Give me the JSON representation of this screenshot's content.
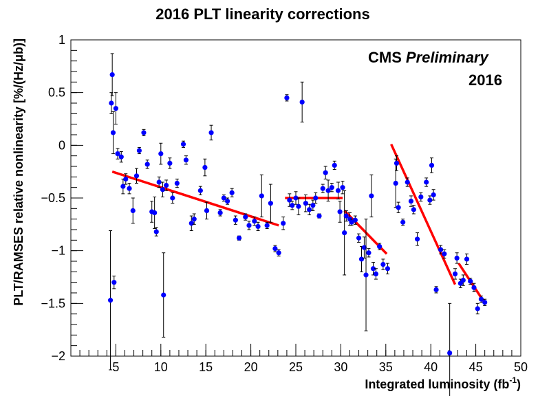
{
  "chart_data": {
    "type": "scatter",
    "title": "2016 PLT linearity corrections",
    "xlabel": "Integrated luminosity (fb",
    "xlabel_sup": "-1",
    "xlabel_close": ")",
    "ylabel": "PLT/RAMSES relative nonlinearity [%/(Hz/μb)]",
    "xlim": [
      0,
      50
    ],
    "ylim": [
      -2,
      1
    ],
    "x_ticks": [
      5,
      10,
      15,
      20,
      25,
      30,
      35,
      40,
      45,
      50
    ],
    "y_ticks": [
      -2,
      -1.5,
      -1,
      -0.5,
      0,
      0.5,
      1
    ],
    "y_tick_labels": [
      "−2",
      "−1.5",
      "−1",
      "−0.5",
      "0",
      "0.5",
      "1"
    ],
    "x_minor_step": 1,
    "y_minor_step": 0.1,
    "grid": false,
    "legend": "none",
    "annotations": {
      "experiment": "CMS",
      "status": "Preliminary",
      "year": "2016"
    },
    "colors": {
      "points": "#0000ff",
      "fits": "#ff0000",
      "axes": "#000000"
    },
    "series": [
      {
        "kind": "points_with_errors",
        "points": [
          {
            "x": 4.4,
            "y": -1.47,
            "err": 0.66
          },
          {
            "x": 4.5,
            "y": 0.4,
            "err": 0.1
          },
          {
            "x": 4.6,
            "y": 0.67,
            "err": 0.2
          },
          {
            "x": 4.7,
            "y": 0.12,
            "err": 0.2
          },
          {
            "x": 4.8,
            "y": -1.3,
            "err": 0.06
          },
          {
            "x": 5.0,
            "y": 0.35,
            "err": 0.15
          },
          {
            "x": 5.2,
            "y": -0.08,
            "err": 0.05
          },
          {
            "x": 5.6,
            "y": -0.11,
            "err": 0.05
          },
          {
            "x": 5.8,
            "y": -0.39,
            "err": 0.07
          },
          {
            "x": 6.1,
            "y": -0.32,
            "err": 0.05
          },
          {
            "x": 6.5,
            "y": -0.41,
            "err": 0.05
          },
          {
            "x": 6.9,
            "y": -0.62,
            "err": 0.12
          },
          {
            "x": 7.3,
            "y": -0.29,
            "err": 0.07
          },
          {
            "x": 7.6,
            "y": -0.05,
            "err": 0.03
          },
          {
            "x": 8.1,
            "y": 0.12,
            "err": 0.03
          },
          {
            "x": 8.5,
            "y": -0.18,
            "err": 0.04
          },
          {
            "x": 9.0,
            "y": -0.63,
            "err": 0.1
          },
          {
            "x": 9.3,
            "y": -0.64,
            "err": 0.15
          },
          {
            "x": 9.5,
            "y": -0.82,
            "err": 0.04
          },
          {
            "x": 9.8,
            "y": -0.35,
            "err": 0.05
          },
          {
            "x": 10.0,
            "y": -0.08,
            "err": 0.1
          },
          {
            "x": 10.2,
            "y": -0.42,
            "err": 0.07
          },
          {
            "x": 10.3,
            "y": -1.42,
            "err": 0.4
          },
          {
            "x": 10.6,
            "y": -0.38,
            "err": 0.05
          },
          {
            "x": 11.0,
            "y": -0.17,
            "err": 0.05
          },
          {
            "x": 11.3,
            "y": -0.5,
            "err": 0.05
          },
          {
            "x": 11.8,
            "y": -0.36,
            "err": 0.04
          },
          {
            "x": 12.5,
            "y": 0.01,
            "err": 0.03
          },
          {
            "x": 12.8,
            "y": -0.14,
            "err": 0.04
          },
          {
            "x": 13.4,
            "y": -0.74,
            "err": 0.07
          },
          {
            "x": 13.7,
            "y": -0.7,
            "err": 0.05
          },
          {
            "x": 14.4,
            "y": -0.43,
            "err": 0.04
          },
          {
            "x": 14.9,
            "y": -0.21,
            "err": 0.08
          },
          {
            "x": 15.1,
            "y": -0.62,
            "err": 0.08
          },
          {
            "x": 15.6,
            "y": 0.12,
            "err": 0.07
          },
          {
            "x": 16.6,
            "y": -0.64,
            "err": 0.03
          },
          {
            "x": 17.0,
            "y": -0.5,
            "err": 0.03
          },
          {
            "x": 17.4,
            "y": -0.53,
            "err": 0.03
          },
          {
            "x": 17.9,
            "y": -0.45,
            "err": 0.04
          },
          {
            "x": 18.3,
            "y": -0.71,
            "err": 0.04
          },
          {
            "x": 18.7,
            "y": -0.88,
            "err": 0.02
          },
          {
            "x": 19.4,
            "y": -0.68,
            "err": 0.03
          },
          {
            "x": 19.8,
            "y": -0.76,
            "err": 0.04
          },
          {
            "x": 20.4,
            "y": -0.72,
            "err": 0.04
          },
          {
            "x": 20.8,
            "y": -0.77,
            "err": 0.04
          },
          {
            "x": 21.2,
            "y": -0.48,
            "err": 0.2
          },
          {
            "x": 21.8,
            "y": -0.76,
            "err": 0.03
          },
          {
            "x": 22.2,
            "y": -0.55,
            "err": 0.18
          },
          {
            "x": 22.7,
            "y": -0.98,
            "err": 0.03
          },
          {
            "x": 23.1,
            "y": -1.02,
            "err": 0.03
          },
          {
            "x": 23.6,
            "y": -0.74,
            "err": 0.06
          },
          {
            "x": 24.0,
            "y": 0.45,
            "err": 0.03
          },
          {
            "x": 24.3,
            "y": -0.52,
            "err": 0.06
          },
          {
            "x": 24.6,
            "y": -0.57,
            "err": 0.04
          },
          {
            "x": 25.0,
            "y": -0.5,
            "err": 0.06
          },
          {
            "x": 25.3,
            "y": -0.58,
            "err": 0.08
          },
          {
            "x": 25.7,
            "y": 0.41,
            "err": 0.19
          },
          {
            "x": 26.1,
            "y": -0.55,
            "err": 0.08
          },
          {
            "x": 26.5,
            "y": -0.61,
            "err": 0.05
          },
          {
            "x": 26.9,
            "y": -0.57,
            "err": 0.05
          },
          {
            "x": 27.2,
            "y": -0.5,
            "err": 0.05
          },
          {
            "x": 27.6,
            "y": -0.67,
            "err": 0.02
          },
          {
            "x": 28.0,
            "y": -0.41,
            "err": 0.04
          },
          {
            "x": 28.3,
            "y": -0.26,
            "err": 0.06
          },
          {
            "x": 28.6,
            "y": -0.43,
            "err": 0.1
          },
          {
            "x": 29.0,
            "y": -0.4,
            "err": 0.04
          },
          {
            "x": 29.3,
            "y": -0.19,
            "err": 0.04
          },
          {
            "x": 29.7,
            "y": -0.43,
            "err": 0.08
          },
          {
            "x": 29.9,
            "y": -0.63,
            "err": 0.1
          },
          {
            "x": 30.2,
            "y": -0.4,
            "err": 0.06
          },
          {
            "x": 30.4,
            "y": -0.83,
            "err": 0.4
          },
          {
            "x": 30.6,
            "y": -0.67,
            "err": 0.05
          },
          {
            "x": 31.0,
            "y": -0.7,
            "err": 0.06
          },
          {
            "x": 31.2,
            "y": -0.73,
            "err": 0.03
          },
          {
            "x": 31.6,
            "y": -0.71,
            "err": 0.04
          },
          {
            "x": 32.0,
            "y": -0.88,
            "err": 0.04
          },
          {
            "x": 32.3,
            "y": -1.08,
            "err": 0.12
          },
          {
            "x": 32.6,
            "y": -0.97,
            "err": 0.1
          },
          {
            "x": 32.8,
            "y": -1.23,
            "err": 0.53
          },
          {
            "x": 33.1,
            "y": -1.02,
            "err": 0.04
          },
          {
            "x": 33.4,
            "y": -0.48,
            "err": 0.2
          },
          {
            "x": 33.6,
            "y": -1.17,
            "err": 0.06
          },
          {
            "x": 33.9,
            "y": -1.22,
            "err": 0.05
          },
          {
            "x": 34.3,
            "y": -0.96,
            "err": 0.03
          },
          {
            "x": 34.7,
            "y": -1.13,
            "err": 0.05
          },
          {
            "x": 35.2,
            "y": -1.17,
            "err": 0.05
          },
          {
            "x": 36.1,
            "y": -0.36,
            "err": 0.23
          },
          {
            "x": 36.2,
            "y": -0.17,
            "err": 0.07
          },
          {
            "x": 36.4,
            "y": -0.59,
            "err": 0.05
          },
          {
            "x": 36.9,
            "y": -0.73,
            "err": 0.03
          },
          {
            "x": 37.4,
            "y": -0.35,
            "err": 0.04
          },
          {
            "x": 37.8,
            "y": -0.53,
            "err": 0.05
          },
          {
            "x": 38.1,
            "y": -0.61,
            "err": 0.04
          },
          {
            "x": 38.5,
            "y": -0.89,
            "err": 0.06
          },
          {
            "x": 38.9,
            "y": -0.49,
            "err": 0.04
          },
          {
            "x": 39.5,
            "y": -0.35,
            "err": 0.04
          },
          {
            "x": 39.9,
            "y": -0.52,
            "err": 0.04
          },
          {
            "x": 40.1,
            "y": -0.19,
            "err": 0.07
          },
          {
            "x": 40.3,
            "y": -0.47,
            "err": 0.05
          },
          {
            "x": 40.6,
            "y": -1.37,
            "err": 0.03
          },
          {
            "x": 41.1,
            "y": -0.99,
            "err": 0.04
          },
          {
            "x": 41.5,
            "y": -1.03,
            "err": 0.04
          },
          {
            "x": 42.1,
            "y": -1.97,
            "err": 0.47
          },
          {
            "x": 42.7,
            "y": -1.22,
            "err": 0.05
          },
          {
            "x": 42.9,
            "y": -1.07,
            "err": 0.05
          },
          {
            "x": 43.3,
            "y": -1.31,
            "err": 0.04
          },
          {
            "x": 43.6,
            "y": -1.28,
            "err": 0.05
          },
          {
            "x": 44.0,
            "y": -1.08,
            "err": 0.05
          },
          {
            "x": 44.4,
            "y": -1.29,
            "err": 0.03
          },
          {
            "x": 44.8,
            "y": -1.35,
            "err": 0.04
          },
          {
            "x": 45.2,
            "y": -1.55,
            "err": 0.05
          },
          {
            "x": 45.6,
            "y": -1.46,
            "err": 0.03
          },
          {
            "x": 46.0,
            "y": -1.49,
            "err": 0.03
          }
        ]
      },
      {
        "kind": "fit_lines",
        "segments": [
          {
            "x": [
              4.6,
              23.1
            ],
            "y": [
              -0.25,
              -0.76
            ]
          },
          {
            "x": [
              23.8,
              30.2
            ],
            "y": [
              -0.5,
              -0.5
            ]
          },
          {
            "x": [
              30.4,
              35.1
            ],
            "y": [
              -0.62,
              -1.03
            ]
          },
          {
            "x": [
              35.6,
              42.7
            ],
            "y": [
              0.01,
              -1.32
            ]
          },
          {
            "x": [
              43.1,
              46.1
            ],
            "y": [
              -1.12,
              -1.51
            ]
          }
        ]
      }
    ]
  }
}
